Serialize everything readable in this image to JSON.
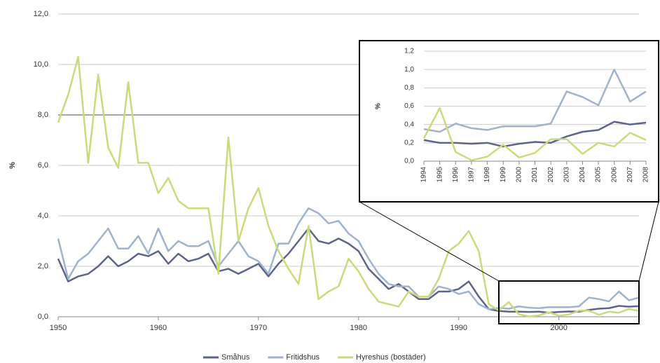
{
  "chart_data": [
    {
      "type": "line",
      "ylabel": "%",
      "x": [
        1950,
        1951,
        1952,
        1953,
        1954,
        1955,
        1956,
        1957,
        1958,
        1959,
        1960,
        1961,
        1962,
        1963,
        1964,
        1965,
        1966,
        1967,
        1968,
        1969,
        1970,
        1971,
        1972,
        1973,
        1974,
        1975,
        1976,
        1977,
        1978,
        1979,
        1980,
        1981,
        1982,
        1983,
        1984,
        1985,
        1986,
        1987,
        1988,
        1989,
        1990,
        1991,
        1992,
        1993,
        1994,
        1995,
        1996,
        1997,
        1998,
        1999,
        2000,
        2001,
        2002,
        2003,
        2004,
        2005,
        2006,
        2007,
        2008
      ],
      "xlim": [
        1950,
        2008
      ],
      "xticks": [
        1950,
        1960,
        1970,
        1980,
        1990,
        2000
      ],
      "ylim": [
        0,
        12
      ],
      "yticks": [
        {
          "value": 0,
          "label": "0,0"
        },
        {
          "value": 2,
          "label": "2,0"
        },
        {
          "value": 4,
          "label": "4,0"
        },
        {
          "value": 6,
          "label": "6,0"
        },
        {
          "value": 8,
          "label": "8,0"
        },
        {
          "value": 10,
          "label": "10,0"
        },
        {
          "value": 12,
          "label": "12,0"
        }
      ],
      "grid": true,
      "legend": "bottom",
      "series": [
        {
          "name": "Småhus",
          "color": "#5e6489",
          "values": [
            2.3,
            1.4,
            1.6,
            1.7,
            2.0,
            2.4,
            2.0,
            2.2,
            2.5,
            2.4,
            2.6,
            2.1,
            2.5,
            2.2,
            2.3,
            2.5,
            1.8,
            1.9,
            1.7,
            1.9,
            2.1,
            1.6,
            2.1,
            2.5,
            3.0,
            3.5,
            3.0,
            2.9,
            3.1,
            2.9,
            2.6,
            1.9,
            1.5,
            1.1,
            1.3,
            1.0,
            0.7,
            0.7,
            1.0,
            1.0,
            1.1,
            1.4,
            0.8,
            0.3,
            0.23,
            0.2,
            0.2,
            0.19,
            0.2,
            0.16,
            0.19,
            0.21,
            0.2,
            0.27,
            0.32,
            0.34,
            0.43,
            0.4,
            0.42
          ]
        },
        {
          "name": "Fritidshus",
          "color": "#9fb3cc",
          "values": [
            3.1,
            1.5,
            2.2,
            2.5,
            3.0,
            3.5,
            2.7,
            2.7,
            3.2,
            2.5,
            3.5,
            2.6,
            3.0,
            2.8,
            2.8,
            3.0,
            2.0,
            2.5,
            3.0,
            2.4,
            2.2,
            1.7,
            2.9,
            2.9,
            3.7,
            4.3,
            4.1,
            3.7,
            3.8,
            3.3,
            3.0,
            2.3,
            1.7,
            1.3,
            1.2,
            1.2,
            0.8,
            0.8,
            1.2,
            1.1,
            0.9,
            1.0,
            0.5,
            0.3,
            0.35,
            0.32,
            0.41,
            0.36,
            0.34,
            0.38,
            0.38,
            0.38,
            0.41,
            0.76,
            0.7,
            0.61,
            1.0,
            0.65,
            0.76
          ]
        },
        {
          "name": "Hyreshus (bostäder)",
          "color": "#c9db7a",
          "values": [
            7.7,
            8.8,
            10.3,
            6.1,
            9.6,
            6.7,
            5.9,
            9.3,
            6.1,
            6.1,
            4.9,
            5.5,
            4.6,
            4.3,
            4.3,
            4.3,
            1.7,
            7.1,
            3.0,
            4.3,
            5.1,
            3.6,
            2.6,
            1.9,
            1.3,
            3.6,
            0.7,
            1.0,
            1.2,
            2.3,
            1.8,
            1.1,
            0.6,
            0.5,
            0.4,
            1.0,
            0.8,
            0.8,
            1.5,
            2.6,
            2.9,
            3.4,
            2.6,
            0.5,
            0.25,
            0.58,
            0.1,
            0.01,
            0.05,
            0.18,
            0.04,
            0.09,
            0.24,
            0.24,
            0.08,
            0.2,
            0.16,
            0.31,
            0.23
          ]
        }
      ]
    },
    {
      "type": "line",
      "ylabel": "%",
      "categories": [
        "1994",
        "1995",
        "1996",
        "1997",
        "1998",
        "1999",
        "2000",
        "2001",
        "2002",
        "2003",
        "2004",
        "2005",
        "2006",
        "2007",
        "2008"
      ],
      "ylim": [
        0,
        1.2
      ],
      "yticks": [
        {
          "value": 0,
          "label": "0,0"
        },
        {
          "value": 0.2,
          "label": "0,2"
        },
        {
          "value": 0.4,
          "label": "0,4"
        },
        {
          "value": 0.6,
          "label": "0,6"
        },
        {
          "value": 0.8,
          "label": "0,8"
        },
        {
          "value": 1.0,
          "label": "1,0"
        },
        {
          "value": 1.2,
          "label": "1,2"
        }
      ],
      "grid": true,
      "series": [
        {
          "color": "#5e6489",
          "values": [
            0.23,
            0.2,
            0.2,
            0.19,
            0.2,
            0.16,
            0.19,
            0.21,
            0.2,
            0.27,
            0.32,
            0.34,
            0.43,
            0.4,
            0.42
          ]
        },
        {
          "color": "#9fb3cc",
          "values": [
            0.35,
            0.32,
            0.41,
            0.36,
            0.34,
            0.38,
            0.38,
            0.38,
            0.41,
            0.76,
            0.7,
            0.61,
            1.0,
            0.65,
            0.76
          ]
        },
        {
          "color": "#c9db7a",
          "values": [
            0.25,
            0.58,
            0.1,
            0.01,
            0.05,
            0.18,
            0.04,
            0.09,
            0.24,
            0.24,
            0.08,
            0.2,
            0.16,
            0.31,
            0.23
          ]
        }
      ]
    }
  ]
}
